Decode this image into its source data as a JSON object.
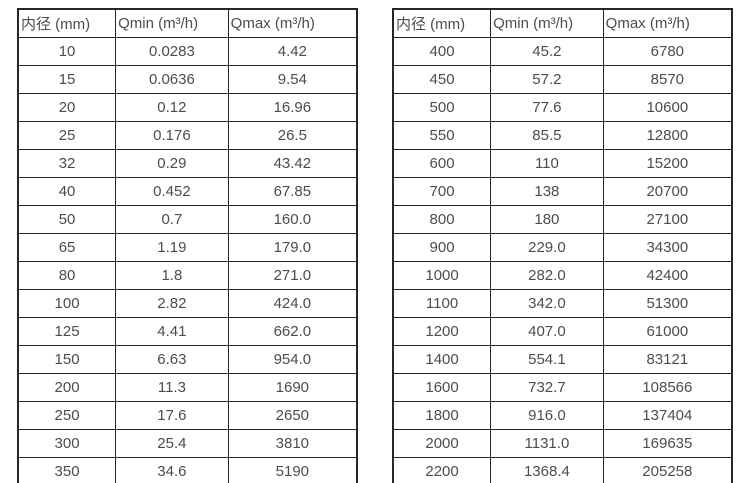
{
  "page": {
    "background": "#ffffff",
    "border_color": "#262626",
    "text_color": "#4c4c4c"
  },
  "tables": [
    {
      "name": "flow-table-small-diameters",
      "headers": [
        "内径 (mm)",
        "Qmin (m³/h)",
        "Qmax (m³/h)"
      ],
      "rows": [
        [
          "10",
          "0.0283",
          "4.42"
        ],
        [
          "15",
          "0.0636",
          "9.54"
        ],
        [
          "20",
          "0.12",
          "16.96"
        ],
        [
          "25",
          "0.176",
          "26.5"
        ],
        [
          "32",
          "0.29",
          "43.42"
        ],
        [
          "40",
          "0.452",
          "67.85"
        ],
        [
          "50",
          "0.7",
          "160.0"
        ],
        [
          "65",
          "1.19",
          "179.0"
        ],
        [
          "80",
          "1.8",
          "271.0"
        ],
        [
          "100",
          "2.82",
          "424.0"
        ],
        [
          "125",
          "4.41",
          "662.0"
        ],
        [
          "150",
          "6.63",
          "954.0"
        ],
        [
          "200",
          "11.3",
          "1690"
        ],
        [
          "250",
          "17.6",
          "2650"
        ],
        [
          "300",
          "25.4",
          "3810"
        ],
        [
          "350",
          "34.6",
          "5190"
        ]
      ]
    },
    {
      "name": "flow-table-large-diameters",
      "headers": [
        "内径 (mm)",
        "Qmin (m³/h)",
        "Qmax (m³/h)"
      ],
      "rows": [
        [
          "400",
          "45.2",
          "6780"
        ],
        [
          "450",
          "57.2",
          "8570"
        ],
        [
          "500",
          "77.6",
          "10600"
        ],
        [
          "550",
          "85.5",
          "12800"
        ],
        [
          "600",
          "110",
          "15200"
        ],
        [
          "700",
          "138",
          "20700"
        ],
        [
          "800",
          "180",
          "27100"
        ],
        [
          "900",
          "229.0",
          "34300"
        ],
        [
          "1000",
          "282.0",
          "42400"
        ],
        [
          "1100",
          "342.0",
          "51300"
        ],
        [
          "1200",
          "407.0",
          "61000"
        ],
        [
          "1400",
          "554.1",
          "83121"
        ],
        [
          "1600",
          "732.7",
          "108566"
        ],
        [
          "1800",
          "916.0",
          "137404"
        ],
        [
          "2000",
          "1131.0",
          "169635"
        ],
        [
          "2200",
          "1368.4",
          "205258"
        ]
      ]
    }
  ]
}
